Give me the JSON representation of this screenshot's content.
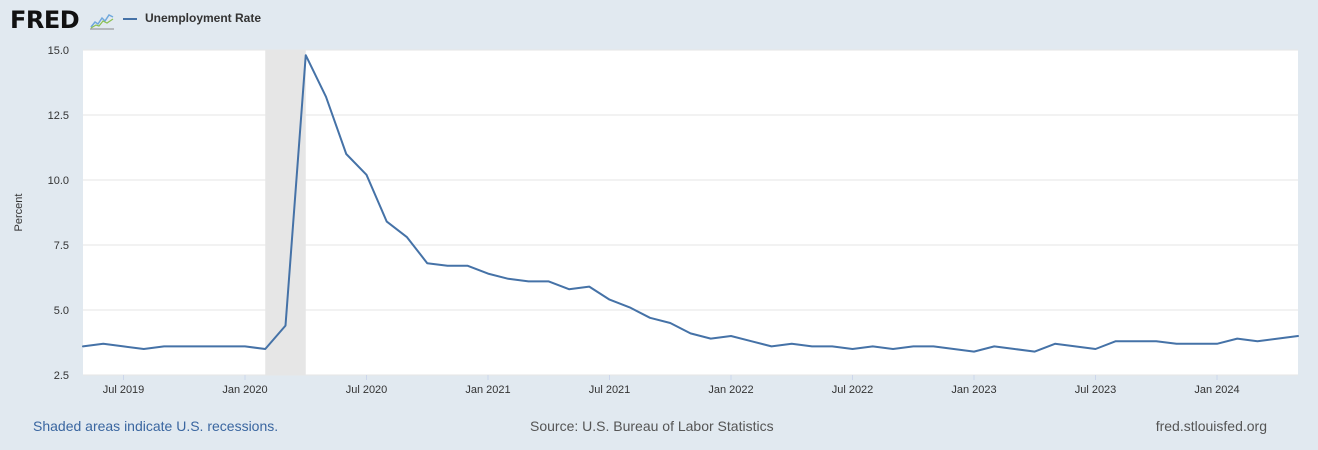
{
  "header": {
    "logo_text": "FRED",
    "logo_icon": "fred-graph-icon",
    "legend_label": "Unemployment Rate",
    "legend_color": "#4572a7"
  },
  "footer": {
    "recessions_note": "Shaded areas indicate U.S. recessions.",
    "source": "Source: U.S. Bureau of Labor Statistics",
    "site": "fred.stlouisfed.org"
  },
  "colors": {
    "background": "#e1e9f0",
    "plot_background": "#ffffff",
    "line": "#4572a7",
    "recession_shade": "#e6e6e6",
    "gridline": "#e6e6e6"
  },
  "chart_data": {
    "type": "line",
    "title": "",
    "xlabel": "",
    "ylabel": "Percent",
    "ylim": [
      2.5,
      15.0
    ],
    "yticks": [
      "2.5",
      "5.0",
      "7.5",
      "10.0",
      "12.5",
      "15.0"
    ],
    "xticks": [
      "Jul 2019",
      "Jan 2020",
      "Jul 2020",
      "Jan 2021",
      "Jul 2021",
      "Jan 2022",
      "Jul 2022",
      "Jan 2023",
      "Jul 2023",
      "Jan 2024"
    ],
    "xlim": [
      "2019-05",
      "2024-05"
    ],
    "grid": true,
    "legend": "top-left",
    "recessions": [
      {
        "start": "2020-02",
        "end": "2020-04"
      }
    ],
    "series": [
      {
        "name": "Unemployment Rate",
        "x": [
          "2019-05",
          "2019-06",
          "2019-07",
          "2019-08",
          "2019-09",
          "2019-10",
          "2019-11",
          "2019-12",
          "2020-01",
          "2020-02",
          "2020-03",
          "2020-04",
          "2020-05",
          "2020-06",
          "2020-07",
          "2020-08",
          "2020-09",
          "2020-10",
          "2020-11",
          "2020-12",
          "2021-01",
          "2021-02",
          "2021-03",
          "2021-04",
          "2021-05",
          "2021-06",
          "2021-07",
          "2021-08",
          "2021-09",
          "2021-10",
          "2021-11",
          "2021-12",
          "2022-01",
          "2022-02",
          "2022-03",
          "2022-04",
          "2022-05",
          "2022-06",
          "2022-07",
          "2022-08",
          "2022-09",
          "2022-10",
          "2022-11",
          "2022-12",
          "2023-01",
          "2023-02",
          "2023-03",
          "2023-04",
          "2023-05",
          "2023-06",
          "2023-07",
          "2023-08",
          "2023-09",
          "2023-10",
          "2023-11",
          "2023-12",
          "2024-01",
          "2024-02",
          "2024-03",
          "2024-04",
          "2024-05"
        ],
        "y": [
          3.6,
          3.7,
          3.6,
          3.5,
          3.6,
          3.6,
          3.6,
          3.6,
          3.6,
          3.5,
          4.4,
          14.8,
          13.2,
          11.0,
          10.2,
          8.4,
          7.8,
          6.8,
          6.7,
          6.7,
          6.4,
          6.2,
          6.1,
          6.1,
          5.8,
          5.9,
          5.4,
          5.1,
          4.7,
          4.5,
          4.1,
          3.9,
          4.0,
          3.8,
          3.6,
          3.7,
          3.6,
          3.6,
          3.5,
          3.6,
          3.5,
          3.6,
          3.6,
          3.5,
          3.4,
          3.6,
          3.5,
          3.4,
          3.7,
          3.6,
          3.5,
          3.8,
          3.8,
          3.8,
          3.7,
          3.7,
          3.7,
          3.9,
          3.8,
          3.9,
          4.0
        ]
      }
    ]
  }
}
